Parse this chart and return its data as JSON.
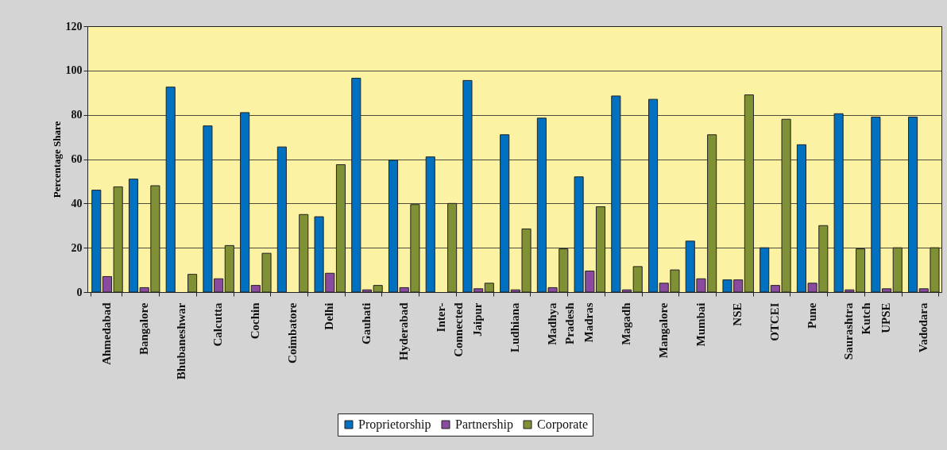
{
  "chart_data": {
    "type": "bar",
    "ylabel": "Percentage Share",
    "categories": [
      "Ahmedabad",
      "Bangalore",
      "Bhubaneshwar",
      "Calcutta",
      "Cochin",
      "Coimbatore",
      "Delhi",
      "Gauhati",
      "Hyderabad",
      "Inter-Connected",
      "Jaipur",
      "Ludhiana",
      "Madhya Pradesh",
      "Madras",
      "Magadh",
      "Mangalore",
      "Mumbai",
      "NSE",
      "OTCEI",
      "Pune",
      "Saurashtra Kutch",
      "UPSE",
      "Vadodara"
    ],
    "series": [
      {
        "name": "Proprietorship",
        "color": "#0070c0",
        "values": [
          46,
          51,
          92.5,
          75,
          81,
          65.5,
          34,
          96.5,
          59.5,
          61,
          95.5,
          71,
          78.5,
          52,
          88.5,
          87,
          23,
          5.5,
          20,
          66.5,
          80.5,
          79,
          79
        ]
      },
      {
        "name": "Partnership",
        "color": "#8a4aa0",
        "values": [
          7,
          2,
          null,
          6,
          3,
          null,
          8.5,
          1,
          2,
          null,
          1.5,
          1,
          2,
          9.5,
          1,
          4,
          6,
          5.5,
          3,
          4,
          1,
          1.5,
          1.5
        ]
      },
      {
        "name": "Corporate",
        "color": "#7f9035",
        "values": [
          47.5,
          48,
          8,
          21,
          17.5,
          35,
          57.5,
          3,
          39.5,
          40,
          4,
          28.5,
          19.5,
          38.5,
          11.5,
          10,
          71,
          89,
          78,
          30,
          19.5,
          20,
          20
        ]
      }
    ],
    "ylim": [
      0,
      120
    ],
    "yticks": [
      0,
      20,
      40,
      60,
      80,
      100,
      120
    ],
    "grid": "y",
    "legend": "bottom"
  }
}
